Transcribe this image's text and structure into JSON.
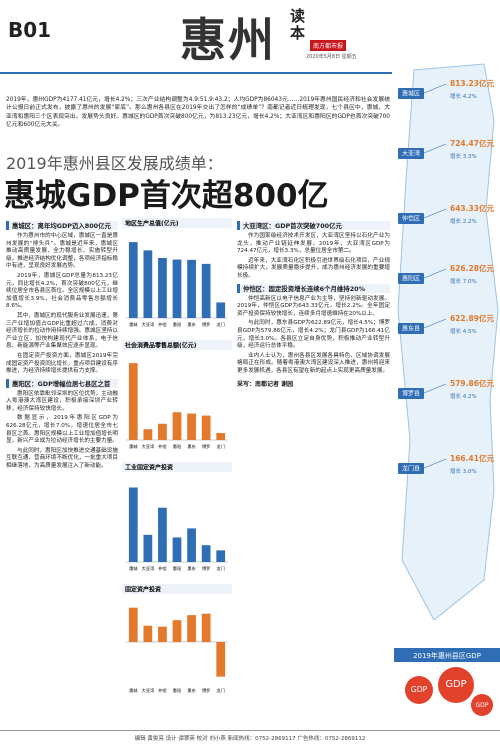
{
  "header": {
    "section": "B01",
    "title": "惠州",
    "reader": "读本",
    "brand": "南方都市报",
    "date": "2020年5月8日 星期五"
  },
  "intro": "2019年，惠州GDP为4177.41亿元，增长4.2%；三次产业结构调整为4.9:51.9:43.2；人均GDP为86043元……2019年惠州国民经济和社会发展统计公报日前正式发布，披露了惠州的发展“家底”。那么惠州各县区在2019年交出了怎样的“成绩单”？南都记者近日梳理发现，七个县区中，惠城、大亚湾和惠阳三个区表现突出，发展势头良好。惠城区的GDP首次突破800亿元，为813.23亿元，增长4.2%；大亚湾区和惠阳区的GDP也首次突破700亿元和600亿元大关。",
  "headline": {
    "kicker": "2019年惠州县区发展成绩单：",
    "main": "惠城GDP首次超800亿"
  },
  "left": [
    {
      "heading": "惠城区：离年均GDP迈入800亿元",
      "paragraphs": [
        "作为惠州市的中心区域，惠城区一直是惠州发展的“排头兵”。惠城是近年来，惠城区推动高质量发展，全力稳增长、实施转型升级，推进经济结构优化调整，各项经济指标稳中有进，呈现良好发展态势。",
        "2019年，惠城区GDP总量为813.23亿元，同比增长4.2%，首次突破800亿元，继续位居全市各县区首位。全区规模以上工业增加值增长3.9%，社会消费品零售总额增长8.6%。",
        "其中，惠城区的现代服务业发展迅速，第三产业增加值占GDP比重超过六成，消费对经济增长的拉动作用持续增强。惠城区坚持以产业立区，加快构建现代产业体系，电子信息、新能源等产业集聚效应逐步显现。",
        "在固定资产投资方面，惠城区2019年完成固定资产投资同比增长，重点项目建设有序推进，为经济持续增长提供有力支撑。"
      ]
    },
    {
      "heading": "惠阳区：GDP增幅位居七县区之首",
      "paragraphs": [
        "惠阳区依靠毗邻深圳的区位优势，主动融入粤港澳大湾区建设，积极承接深圳产业转移，经济保持较快增长。",
        "数据显示，2019年惠阳区GDP为626.28亿元，增长7.0%，增速位居全市七县区之首。惠阳区规模以上工业增加值增长明显，新兴产业成为拉动经济增长的主要力量。",
        "与此同时，惠阳区加快推进交通基础设施互联互通，营商环境不断优化，一批重大项目相继落地，为高质量发展注入了新动能。"
      ]
    }
  ],
  "right": [
    {
      "heading": "大亚湾区：GDP首次突破700亿元",
      "paragraphs": [
        "作为国家级经济技术开发区，大亚湾区坚持以石化产业为龙头，推动产业链延伸发展。2019年，大亚湾区GDP为724.47亿元，增长3.3%，总量位居全市第二。",
        "近年来，大亚湾石化区积极引进世界级石化项目，产业规模持续扩大，发展质量稳步提升，成为惠州经济发展的重要增长极。"
      ]
    },
    {
      "heading": "仲恺区：固定投资增长连续6个月维持20%",
      "paragraphs": [
        "仲恺高新区以电子信息产业为主导，坚持创新驱动发展。2019年，仲恺区GDP为643.33亿元，增长2.2%。全年固定资产投资保持较快增长，连续多月增速维持在20%以上。",
        "与此同时，惠东县GDP为622.89亿元，增长4.5%；博罗县GDP为579.86亿元，增长4.2%；龙门县GDP为166.41亿元，增长3.0%。各县区立足自身优势，积极推动产业转型升级，经济运行总体平稳。",
        "业内人士认为，惠州各县区发展各具特色，区域协调发展格局正在形成。随着粤港澳大湾区建设深入推进，惠州将迎来更多发展机遇，各县区有望在新的起点上实现更高质量发展。"
      ]
    }
  ],
  "byline": "采写：南都记者 谢园",
  "charts": [
    {
      "title": "地区生产总值(亿元)",
      "categories": [
        "惠城",
        "大亚湾",
        "仲恺",
        "惠阳",
        "惠东",
        "博罗",
        "龙门"
      ],
      "values": [
        813.23,
        724.47,
        643.33,
        626.28,
        622.89,
        579.86,
        166.41
      ],
      "ylim": [
        0,
        900
      ],
      "color": "#2f6db5"
    },
    {
      "title": "社会消费品零售总额(亿元)",
      "categories": [
        "惠城",
        "大亚湾",
        "仲恺",
        "惠阳",
        "惠东",
        "博罗",
        "龙门"
      ],
      "values": [
        686,
        96,
        145,
        248,
        236,
        218,
        62
      ],
      "ylim": [
        0,
        750
      ],
      "color": "#e2792b"
    },
    {
      "title": "工业固定资产投资",
      "categories": [
        "惠城",
        "大亚湾",
        "仲恺",
        "惠阳",
        "惠东",
        "博罗",
        "龙门"
      ],
      "values": [
        5766,
        2100,
        4200,
        1900,
        2600,
        1300,
        900
      ],
      "ylim": [
        0,
        6500
      ],
      "color": "#2f6db5"
    },
    {
      "title": "固定资产投资",
      "categories": [
        "惠城",
        "大亚湾",
        "仲恺",
        "惠阳",
        "惠东",
        "博罗",
        "龙门"
      ],
      "values": [
        28.6,
        13.6,
        12.8,
        18.2,
        22.4,
        23.6,
        -28.9
      ],
      "ylim": [
        -35,
        35
      ],
      "color": "#e2792b"
    }
  ],
  "sidebar": {
    "districts": [
      {
        "name": "惠城区",
        "value": "813.23亿元",
        "growth": "增长 4.2%"
      },
      {
        "name": "大亚湾",
        "value": "724.47亿元",
        "growth": "增长 3.3%"
      },
      {
        "name": "仲恺区",
        "value": "643.33亿元",
        "growth": "增长 2.2%"
      },
      {
        "name": "惠阳区",
        "value": "626.28亿元",
        "growth": "增长 7.0%"
      },
      {
        "name": "惠东县",
        "value": "622.89亿元",
        "growth": "增长 4.5%"
      },
      {
        "name": "博罗县",
        "value": "579.86亿元",
        "growth": "增长 4.2%"
      },
      {
        "name": "龙门县",
        "value": "166.41亿元",
        "growth": "增长 3.0%"
      }
    ],
    "banner": "2019年惠州县区GDP",
    "coin": "GDP"
  },
  "footer": "编辑 黄俊亮  设计 谭翠英  校对 刘小燕  新闻热线：0752-2869117  广告热线：0752-2869112"
}
